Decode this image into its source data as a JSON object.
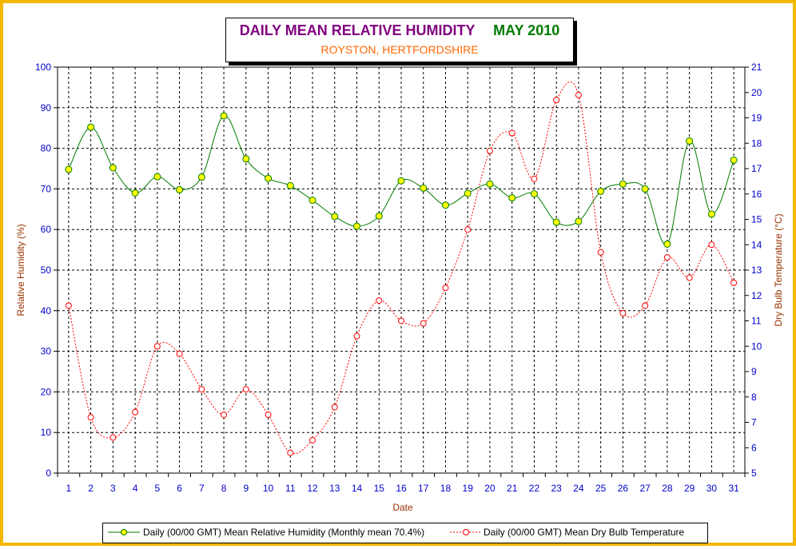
{
  "title": {
    "main": "DAILY MEAN RELATIVE HUMIDITY",
    "period": "MAY 2010",
    "subtitle": "ROYSTON, HERTFORDSHIRE"
  },
  "colors": {
    "frame": "#f2b800",
    "title_main": "#800080",
    "title_period": "#007a00",
    "subtitle": "#ff6600",
    "left_axis_ticks": "#0000cc",
    "right_axis_ticks": "#0000cc",
    "axis_labels": "#993300",
    "humidity_line": "#007a00",
    "humidity_marker": "#ffff00",
    "temperature_line": "#ff0000"
  },
  "legend": {
    "humidity": "Daily (00/00 GMT) Mean Relative Humidity (Monthly mean 70.4%)",
    "temperature": "Daily (00/00 GMT) Mean Dry Bulb Temperature"
  },
  "chart_data": {
    "type": "line",
    "xlabel": "Date",
    "ylabel": "Relative Humidity (%)",
    "y2label": "Dry Bulb Temperature (°C)",
    "ylim": [
      0,
      100
    ],
    "y2lim": [
      5,
      21
    ],
    "grid": true,
    "legend_position": "bottom",
    "x": [
      1,
      2,
      3,
      4,
      5,
      6,
      7,
      8,
      9,
      10,
      11,
      12,
      13,
      14,
      15,
      16,
      17,
      18,
      19,
      20,
      21,
      22,
      23,
      24,
      25,
      26,
      27,
      28,
      29,
      30,
      31
    ],
    "series": [
      {
        "name": "Daily (00/00 GMT) Mean Relative Humidity (Monthly mean 70.4%)",
        "axis": "left",
        "values": [
          74.8,
          85.2,
          75.2,
          69.0,
          73.0,
          69.8,
          72.9,
          88.0,
          77.4,
          72.6,
          70.8,
          67.2,
          63.2,
          60.8,
          63.3,
          72.0,
          70.2,
          66.0,
          68.9,
          71.2,
          67.8,
          68.8,
          61.8,
          62.0,
          69.4,
          71.2,
          70.0,
          56.4,
          81.8,
          63.8,
          77.1
        ]
      },
      {
        "name": "Daily (00/00 GMT) Mean Dry Bulb Temperature",
        "axis": "right",
        "values": [
          11.6,
          7.2,
          6.4,
          7.4,
          10.0,
          9.7,
          8.3,
          7.3,
          8.3,
          7.3,
          5.8,
          6.3,
          7.6,
          10.4,
          11.8,
          11.0,
          10.9,
          12.3,
          14.6,
          17.7,
          18.4,
          16.6,
          19.7,
          19.9,
          13.7,
          11.3,
          11.6,
          13.5,
          12.7,
          14.0,
          12.5
        ]
      }
    ],
    "y_ticks": [
      0,
      10,
      20,
      30,
      40,
      50,
      60,
      70,
      80,
      90,
      100
    ],
    "y2_ticks": [
      5,
      6,
      7,
      8,
      9,
      10,
      11,
      12,
      13,
      14,
      15,
      16,
      17,
      18,
      19,
      20,
      21
    ]
  }
}
